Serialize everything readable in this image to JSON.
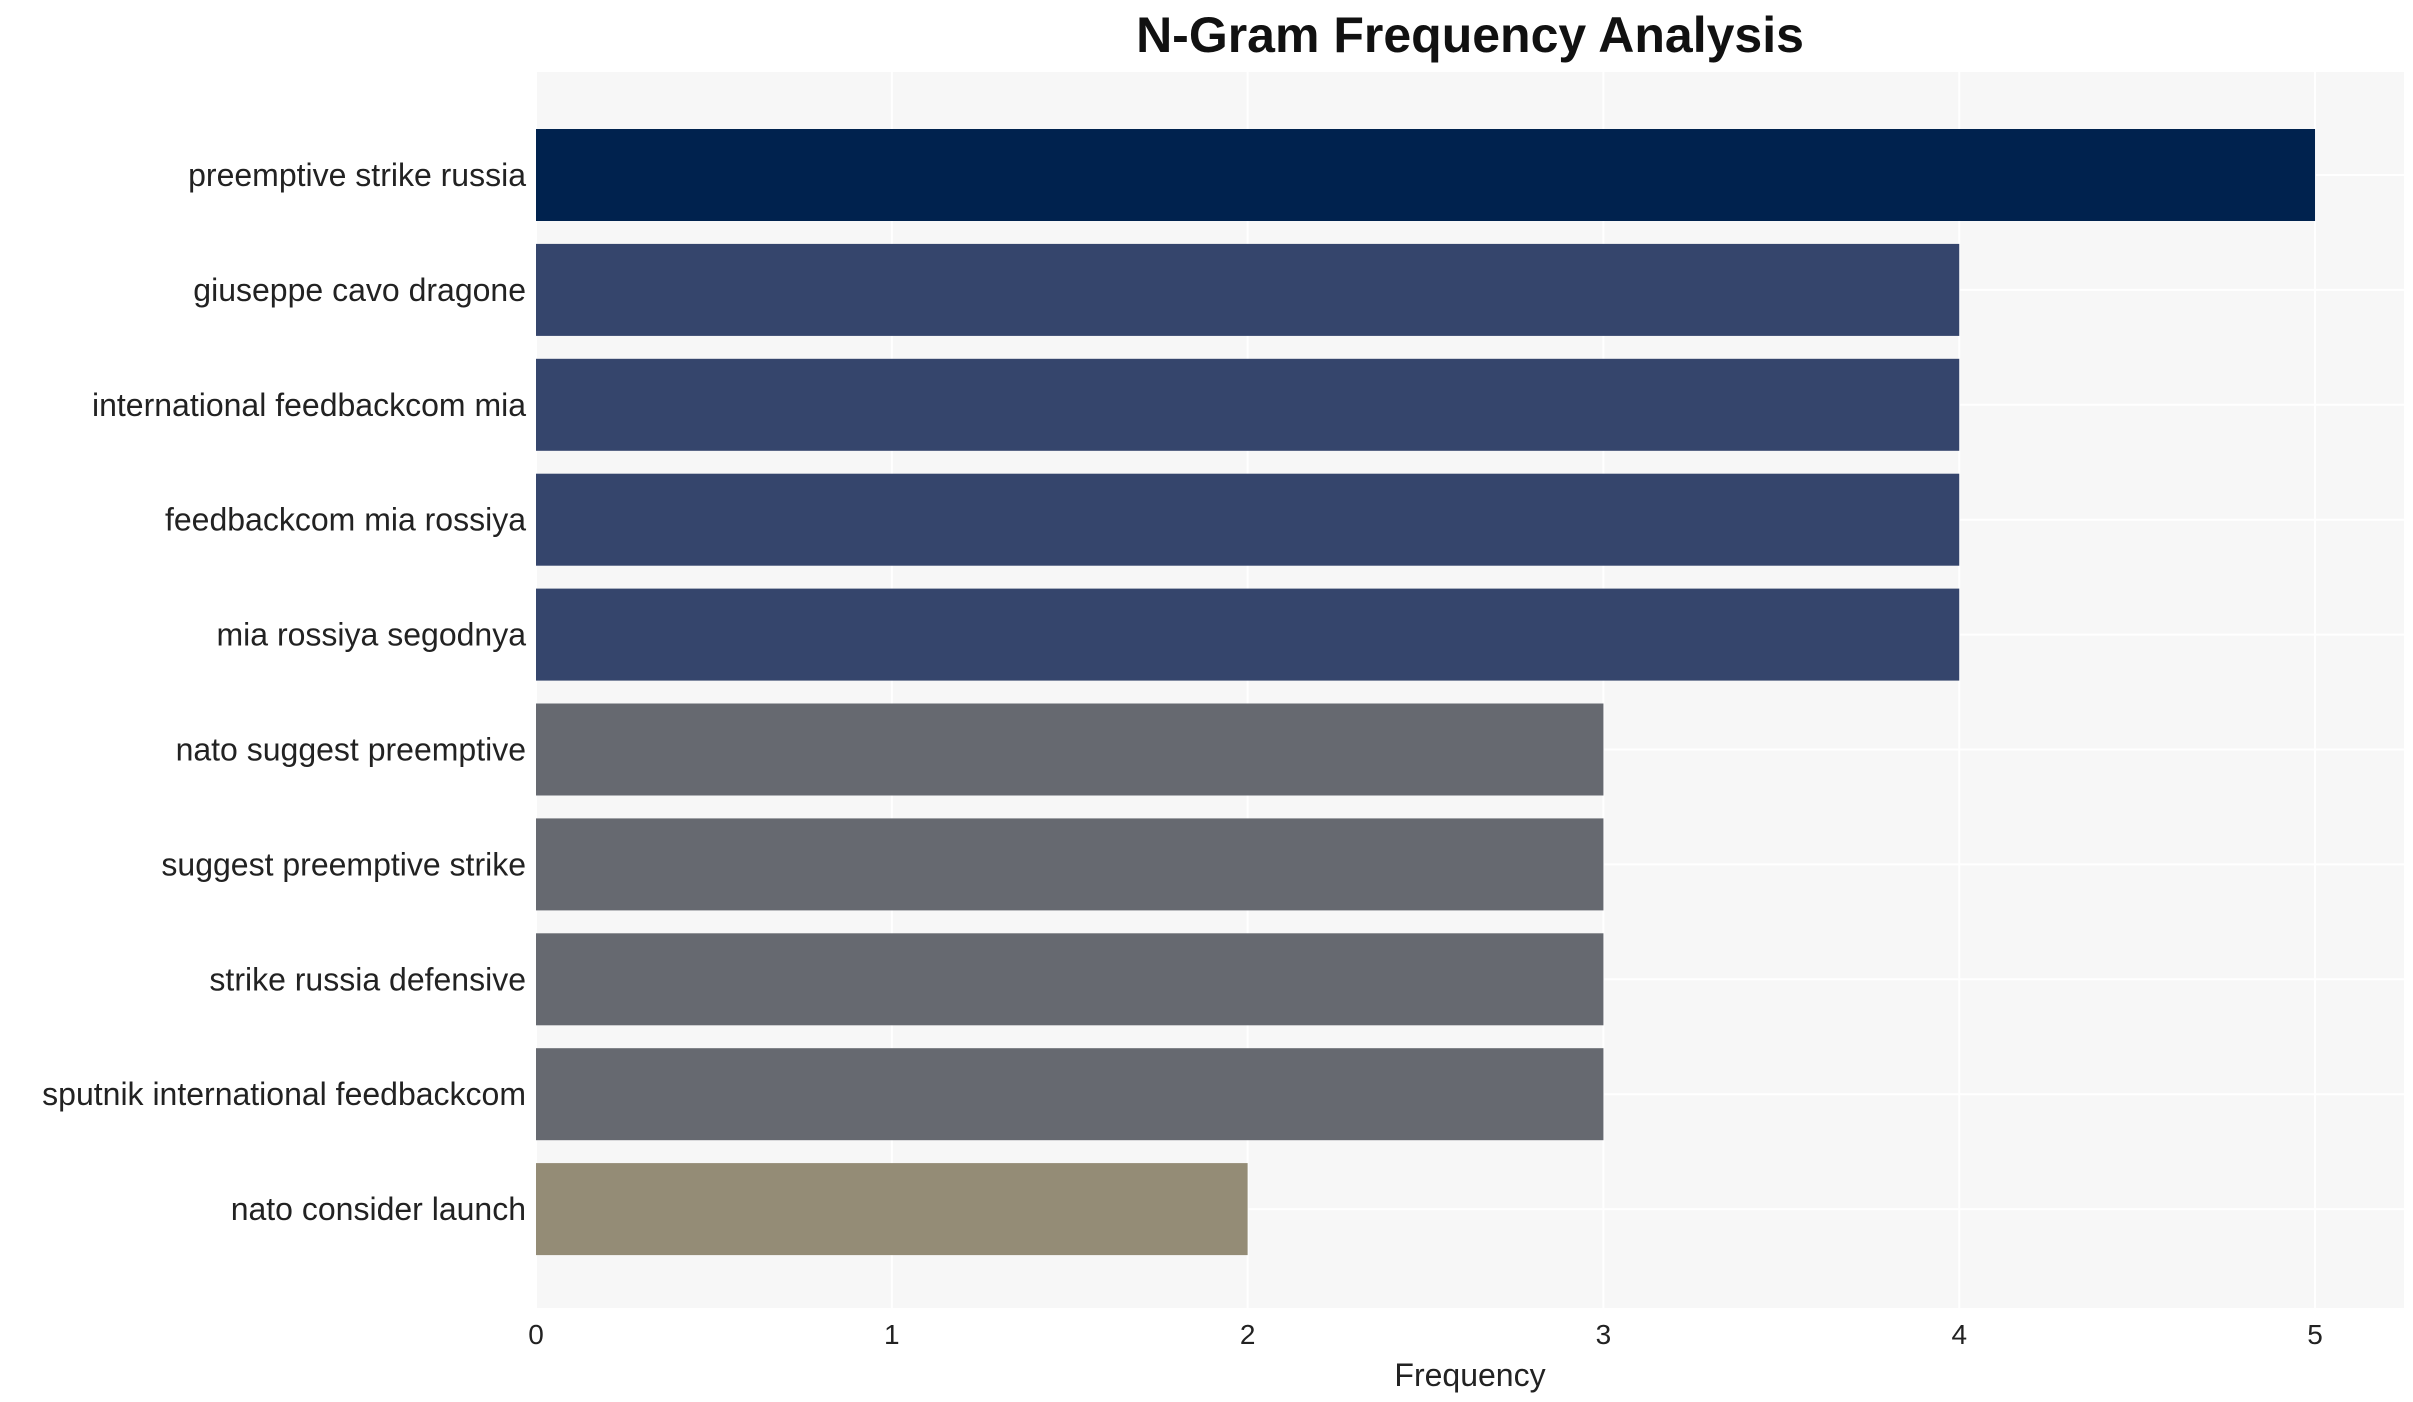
{
  "chart_data": {
    "type": "bar",
    "orientation": "horizontal",
    "title": "N-Gram Frequency Analysis",
    "xlabel": "Frequency",
    "ylabel": "",
    "xlim": [
      0,
      5.25
    ],
    "xticks": [
      "0",
      "1",
      "2",
      "3",
      "4",
      "5"
    ],
    "grid": true,
    "legend": "none",
    "categories": [
      "preemptive strike russia",
      "giuseppe cavo dragone",
      "international feedbackcom mia",
      "feedbackcom mia rossiya",
      "mia rossiya segodnya",
      "nato suggest preemptive",
      "suggest preemptive strike",
      "strike russia defensive",
      "sputnik international feedbackcom",
      "nato consider launch"
    ],
    "values": [
      5,
      4,
      4,
      4,
      4,
      3,
      3,
      3,
      3,
      2
    ],
    "colors": {
      "5": "#00224e",
      "4": "#35456c",
      "3": "#666970",
      "2": "#948c76",
      "background": "#f7f7f7",
      "grid": "#ffffff",
      "text": "#222222"
    }
  }
}
